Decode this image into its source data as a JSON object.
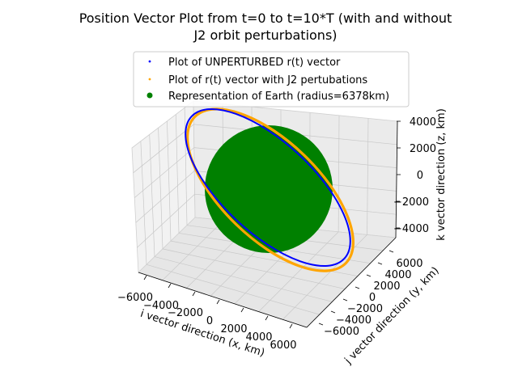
{
  "chart_data": {
    "type": "scatter",
    "projection": "3d",
    "title_lines": [
      "Position Vector Plot from t=0 to t=10*T (with and without",
      "J2 orbit perturbations)"
    ],
    "xlabel": "i vector direction (x, km)",
    "ylabel": "j vector direction (y, km)",
    "zlabel": "k vector direction (z, km)",
    "x_ticks": [
      "−6000",
      "−4000",
      "−2000",
      "0",
      "2000",
      "4000",
      "6000"
    ],
    "y_ticks": [
      "−6000",
      "−4000",
      "−2000",
      "0",
      "2000",
      "4000",
      "6000"
    ],
    "z_ticks": [
      "−4000",
      "−2000",
      "0",
      "2000",
      "4000"
    ],
    "xlim": [
      -7000,
      7000
    ],
    "ylim": [
      -7000,
      7000
    ],
    "zlim": [
      -5000,
      5000
    ],
    "grid": true,
    "legend_position": "top-center",
    "series": [
      {
        "name": "Plot of UNPERTURBED r(t) vector",
        "color": "#0000ff",
        "marker": "small-dot"
      },
      {
        "name": "Plot of r(t) vector with J2 pertubations",
        "color": "#ffa500",
        "marker": "small-dot"
      },
      {
        "name": "Representation of Earth (radius=6378km)",
        "color": "#008000",
        "marker": "sphere",
        "radius_km": 6378
      }
    ]
  }
}
